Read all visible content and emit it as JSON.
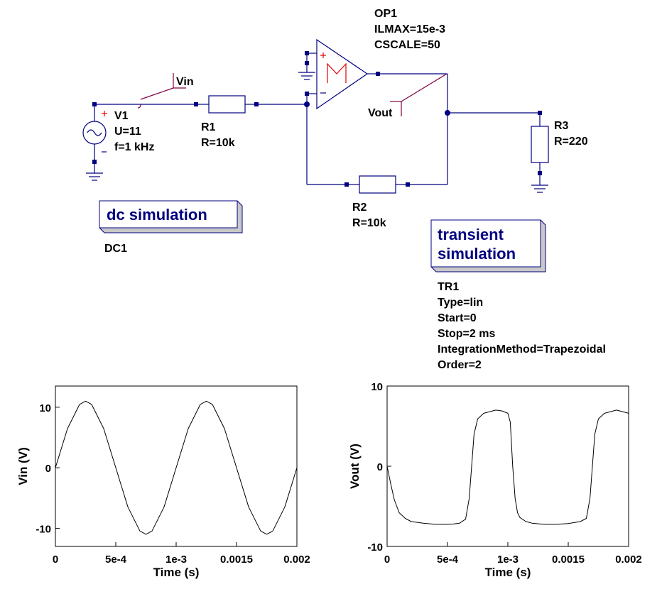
{
  "schematic": {
    "v1": {
      "name": "V1",
      "param1": "U=11",
      "param2": "f=1 kHz"
    },
    "r1": {
      "name": "R1",
      "value": "R=10k"
    },
    "r2": {
      "name": "R2",
      "value": "R=10k"
    },
    "r3": {
      "name": "R3",
      "value": "R=220"
    },
    "op1": {
      "name": "OP1",
      "param1": "ILMAX=15e-3",
      "param2": "CSCALE=50"
    },
    "vin_label": "Vin",
    "vout_label": "Vout",
    "dc_box": {
      "title": "dc simulation",
      "name": "DC1"
    },
    "tr_box": {
      "title_line1": "transient",
      "title_line2": "simulation",
      "name": "TR1",
      "params": [
        "Type=lin",
        "Start=0",
        "Stop=2 ms",
        "IntegrationMethod=Trapezoidal",
        "Order=2"
      ]
    }
  },
  "chart_data": [
    {
      "type": "line",
      "title": "",
      "xlabel": "Time (s)",
      "ylabel": "Vin (V)",
      "xlim": [
        0,
        0.002
      ],
      "ylim": [
        -13,
        13.5
      ],
      "xticks": [
        0,
        0.0005,
        0.001,
        0.0015,
        0.002
      ],
      "xtick_labels": [
        "0",
        "5e-4",
        "1e-3",
        "0.0015",
        "0.002"
      ],
      "yticks": [
        10,
        0,
        -10
      ],
      "ytick_labels": [
        "10",
        "0",
        "-10"
      ],
      "series": [
        {
          "x": [
            0,
            0.0001,
            0.0002,
            0.00025,
            0.0003,
            0.0004,
            0.0005,
            0.0006,
            0.0007,
            0.00075,
            0.0008,
            0.0009,
            0.001,
            0.0011,
            0.0012,
            0.00125,
            0.0013,
            0.0014,
            0.0015,
            0.0016,
            0.0017,
            0.00175,
            0.0018,
            0.0019,
            0.002
          ],
          "values": [
            0,
            6.47,
            10.46,
            11,
            10.46,
            6.47,
            0,
            -6.47,
            -10.46,
            -11,
            -10.46,
            -6.47,
            0,
            6.47,
            10.46,
            11,
            10.46,
            6.47,
            0,
            -6.47,
            -10.46,
            -11,
            -10.46,
            -6.47,
            0
          ]
        }
      ]
    },
    {
      "type": "line",
      "title": "",
      "xlabel": "Time (s)",
      "ylabel": "Vout (V)",
      "xlim": [
        0,
        0.002
      ],
      "ylim": [
        -10,
        10
      ],
      "xticks": [
        0,
        0.0005,
        0.001,
        0.0015,
        0.002
      ],
      "xtick_labels": [
        "0",
        "5e-4",
        "1e-3",
        "0.0015",
        "0.002"
      ],
      "yticks": [
        10,
        0,
        -10
      ],
      "ytick_labels": [
        "10",
        "0",
        "-10"
      ],
      "series": [
        {
          "x": [
            0,
            3e-05,
            6e-05,
            0.0001,
            0.00015,
            0.0002,
            0.0003,
            0.0004,
            0.0005,
            0.00055,
            0.0006,
            0.00065,
            0.00068,
            0.0007,
            0.00072,
            0.00075,
            0.0008,
            0.0009,
            0.00095,
            0.001,
            0.00102,
            0.00104,
            0.00106,
            0.00108,
            0.0011,
            0.00115,
            0.0012,
            0.0013,
            0.0014,
            0.0015,
            0.0016,
            0.00165,
            0.00168,
            0.0017,
            0.00172,
            0.00175,
            0.0018,
            0.0019,
            0.002
          ],
          "values": [
            0,
            -2.2,
            -4.2,
            -5.8,
            -6.5,
            -6.9,
            -7.1,
            -7.25,
            -7.25,
            -7.2,
            -7.1,
            -6.6,
            -4,
            0,
            4,
            5.9,
            6.6,
            7.0,
            6.9,
            6.6,
            5.5,
            0,
            -4,
            -5.8,
            -6.4,
            -6.9,
            -7.1,
            -7.25,
            -7.25,
            -7.15,
            -6.9,
            -6.5,
            -4,
            0,
            4,
            5.9,
            6.6,
            7.0,
            6.6
          ]
        }
      ]
    }
  ]
}
